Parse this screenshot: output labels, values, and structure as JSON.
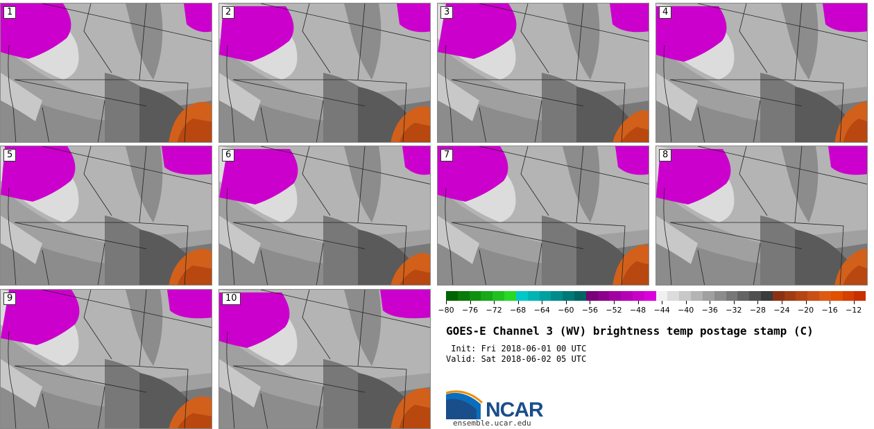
{
  "panels": [
    {
      "label": "1",
      "variant": 0
    },
    {
      "label": "2",
      "variant": 1
    },
    {
      "label": "3",
      "variant": 2
    },
    {
      "label": "4",
      "variant": 3
    },
    {
      "label": "5",
      "variant": 4
    },
    {
      "label": "6",
      "variant": 5
    },
    {
      "label": "7",
      "variant": 6
    },
    {
      "label": "8",
      "variant": 7
    },
    {
      "label": "9",
      "variant": 8
    },
    {
      "label": "10",
      "variant": 9
    }
  ],
  "colorbar": {
    "ticks": [
      "−80",
      "−76",
      "−72",
      "−68",
      "−64",
      "−60",
      "−56",
      "−52",
      "−48",
      "−44",
      "−40",
      "−36",
      "−32",
      "−28",
      "−24",
      "−20",
      "−16",
      "−12"
    ],
    "tick_values": [
      -80,
      -76,
      -72,
      -68,
      -64,
      -60,
      -56,
      -52,
      -48,
      -44,
      -40,
      -36,
      -32,
      -28,
      -24,
      -20,
      -16,
      -12
    ],
    "range": [
      -80,
      -10
    ],
    "colors": [
      "#006400",
      "#0a7a0a",
      "#109010",
      "#18a818",
      "#20c020",
      "#28d828",
      "#00c8c8",
      "#00b4b4",
      "#00a0a0",
      "#008c8c",
      "#007878",
      "#006464",
      "#780078",
      "#8c008c",
      "#a000a0",
      "#b400b4",
      "#c800c8",
      "#dc00dc",
      "#f0f0f0",
      "#dcdcdc",
      "#c8c8c8",
      "#b4b4b4",
      "#a0a0a0",
      "#8c8c8c",
      "#787878",
      "#646464",
      "#505050",
      "#3c3c3c",
      "#8c3214",
      "#a03c14",
      "#b44614",
      "#c85014",
      "#dc5a14",
      "#e05000",
      "#d44000",
      "#c83000"
    ]
  },
  "title": "GOES-E Channel 3 (WV) brightness temp postage stamp (C)",
  "init_text": " Init: Fri 2018-06-01 00 UTC",
  "valid_text": "Valid: Sat 2018-06-02 05 UTC",
  "logo": {
    "text": "NCAR",
    "site": "ensemble.ucar.edu",
    "color": "#1a4e8a"
  }
}
